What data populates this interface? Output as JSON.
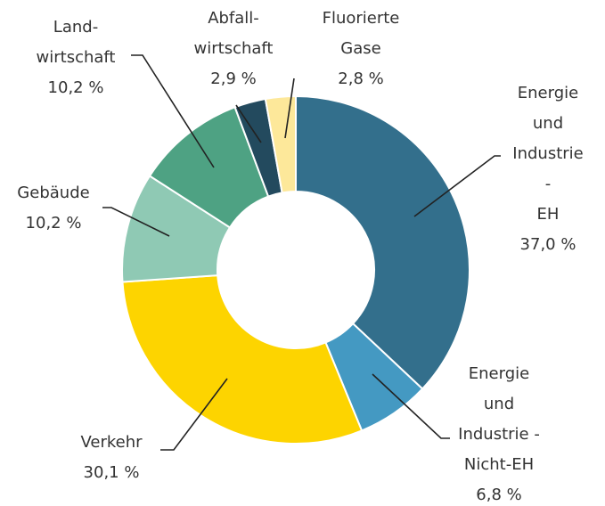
{
  "chart_data": {
    "type": "donut",
    "categories": [
      "Energie\nund\nIndustrie -\nEH",
      "Energie\nund\nIndustrie -\nNicht-EH",
      "Verkehr",
      "Gebäude",
      "Land-\nwirtschaft",
      "Abfall-\nwirtschaft",
      "Fluorierte\nGase"
    ],
    "values": [
      37.0,
      6.8,
      30.1,
      10.2,
      10.2,
      2.9,
      2.8
    ],
    "value_labels": [
      "37,0 %",
      "6,8 %",
      "30,1 %",
      "10,2 %",
      "10,2 %",
      "2,9 %",
      "2,8 %"
    ],
    "colors": [
      "#336f8c",
      "#4499c2",
      "#fdd400",
      "#8fc9b4",
      "#4ea283",
      "#234a5e",
      "#fde89a"
    ]
  }
}
